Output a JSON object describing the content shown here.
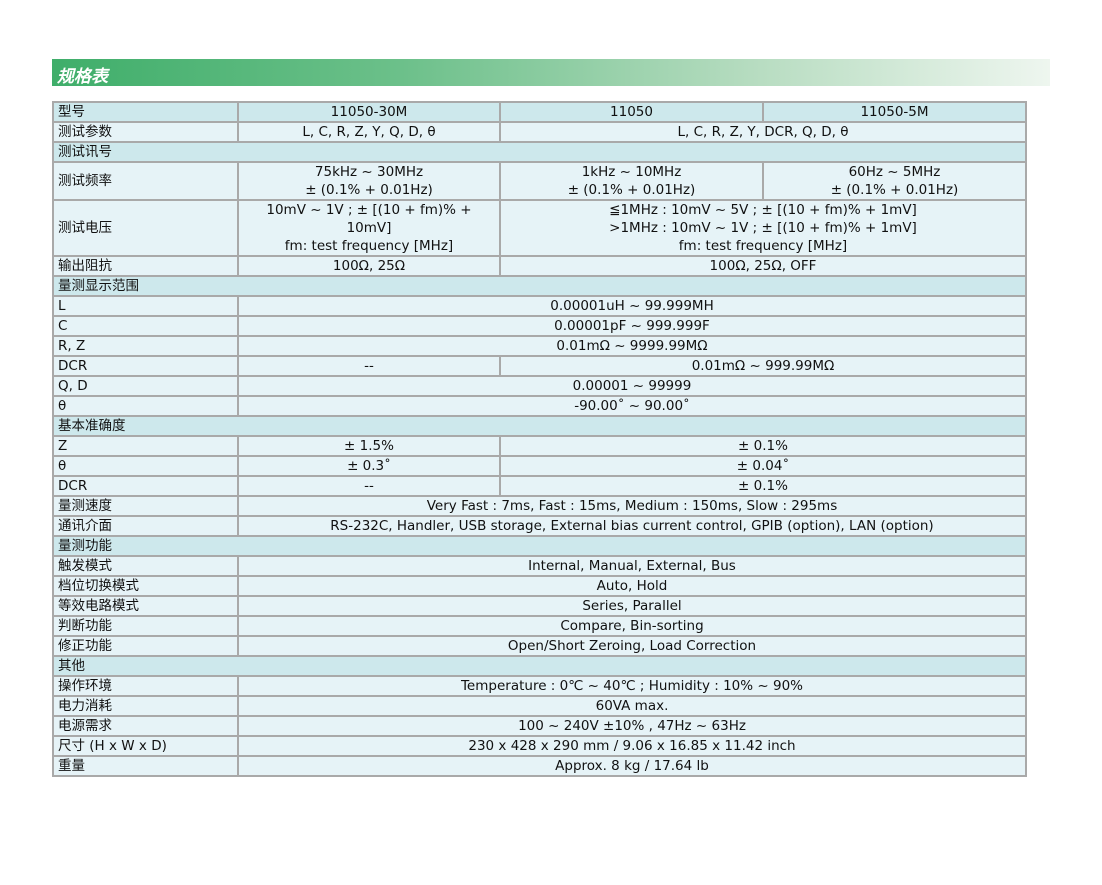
{
  "title": "规格表",
  "rows": [
    {
      "label": "型号",
      "hdr": true,
      "cells": [
        {
          "t": "11050-30M"
        },
        {
          "t": "11050"
        },
        {
          "t": "11050-5M"
        }
      ]
    },
    {
      "label": "测试参数",
      "cells": [
        {
          "t": "L, C, R, Z, Y, Q, D,  θ"
        },
        {
          "t": "L, C, R, Z, Y, DCR, Q, D,  θ",
          "s": 2
        }
      ]
    },
    {
      "label": "测试讯号",
      "sec": true
    },
    {
      "label": "测试频率",
      "cells": [
        {
          "t": "75kHz ~ 30MHz\n± (0.1% + 0.01Hz)"
        },
        {
          "t": "1kHz ~ 10MHz\n± (0.1% + 0.01Hz)"
        },
        {
          "t": "60Hz ~ 5MHz\n± (0.1% + 0.01Hz)"
        }
      ]
    },
    {
      "label": "测试电压",
      "cells": [
        {
          "t": "10mV ~ 1V ; ± [(10 + fm)% + 10mV]\nfm: test frequency [MHz]"
        },
        {
          "t": "≦1MHz : 10mV ~ 5V ; ± [(10 + fm)% + 1mV]\n>1MHz : 10mV ~ 1V ; ± [(10 + fm)% + 1mV]\nfm: test frequency [MHz]",
          "s": 2
        }
      ]
    },
    {
      "label": "输出阻抗",
      "cells": [
        {
          "t": "100Ω, 25Ω"
        },
        {
          "t": "100Ω, 25Ω, OFF",
          "s": 2
        }
      ]
    },
    {
      "label": "量测显示范围",
      "sec": true
    },
    {
      "label": "L",
      "cells": [
        {
          "t": "0.00001uH ~ 99.999MH",
          "s": 3
        }
      ]
    },
    {
      "label": "C",
      "cells": [
        {
          "t": "0.00001pF ~ 999.999F",
          "s": 3
        }
      ]
    },
    {
      "label": "R, Z",
      "cells": [
        {
          "t": "0.01mΩ ~ 9999.99MΩ",
          "s": 3
        }
      ]
    },
    {
      "label": "DCR",
      "cells": [
        {
          "t": "--"
        },
        {
          "t": "0.01mΩ ~ 999.99MΩ",
          "s": 2
        }
      ]
    },
    {
      "label": "Q, D",
      "cells": [
        {
          "t": "0.00001 ~ 99999",
          "s": 3
        }
      ]
    },
    {
      "label": "θ",
      "cells": [
        {
          "t": "-90.00˚ ~ 90.00˚",
          "s": 3
        }
      ]
    },
    {
      "label": "基本准确度",
      "sec": true
    },
    {
      "label": "Z",
      "cells": [
        {
          "t": "± 1.5%"
        },
        {
          "t": "± 0.1%",
          "s": 2
        }
      ]
    },
    {
      "label": "θ",
      "cells": [
        {
          "t": "± 0.3˚"
        },
        {
          "t": "± 0.04˚",
          "s": 2
        }
      ]
    },
    {
      "label": "DCR",
      "cells": [
        {
          "t": "--"
        },
        {
          "t": "± 0.1%",
          "s": 2
        }
      ]
    },
    {
      "label": "量测速度",
      "cells": [
        {
          "t": "Very Fast : 7ms, Fast : 15ms, Medium : 150ms, Slow : 295ms",
          "s": 3
        }
      ]
    },
    {
      "label": "通讯介面",
      "cells": [
        {
          "t": "RS-232C, Handler, USB storage, External bias current control, GPIB (option), LAN (option)",
          "s": 3
        }
      ]
    },
    {
      "label": "量测功能",
      "sec": true
    },
    {
      "label": "触发模式",
      "cells": [
        {
          "t": "Internal, Manual, External, Bus",
          "s": 3
        }
      ]
    },
    {
      "label": "档位切换模式",
      "cells": [
        {
          "t": "Auto, Hold",
          "s": 3
        }
      ]
    },
    {
      "label": "等效电路模式",
      "cells": [
        {
          "t": "Series, Parallel",
          "s": 3
        }
      ]
    },
    {
      "label": "判断功能",
      "cells": [
        {
          "t": "Compare,  Bin-sorting",
          "s": 3
        }
      ]
    },
    {
      "label": "修正功能",
      "cells": [
        {
          "t": "Open/Short Zeroing, Load Correction",
          "s": 3
        }
      ]
    },
    {
      "label": "其他",
      "sec": true
    },
    {
      "label": "操作环境",
      "cells": [
        {
          "t": "Temperature : 0℃ ~ 40℃ ; Humidity : 10% ~ 90%",
          "s": 3
        }
      ]
    },
    {
      "label": "电力消耗",
      "cells": [
        {
          "t": "60VA max.",
          "s": 3
        }
      ]
    },
    {
      "label": "电源需求",
      "cells": [
        {
          "t": "100 ~ 240V ±10% , 47Hz ~ 63Hz",
          "s": 3
        }
      ]
    },
    {
      "label": "尺寸 (H x W x D)",
      "cells": [
        {
          "t": "230 x 428 x 290 mm / 9.06 x 16.85 x 11.42 inch",
          "s": 3
        }
      ]
    },
    {
      "label": "重量",
      "cells": [
        {
          "t": "Approx. 8 kg / 17.64 lb",
          "s": 3
        }
      ]
    }
  ]
}
